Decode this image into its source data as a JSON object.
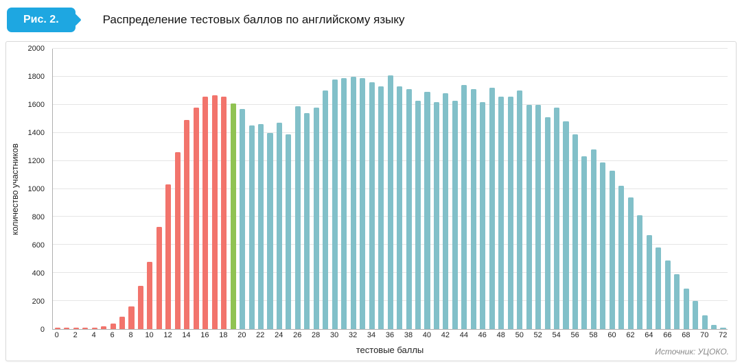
{
  "header": {
    "badge_label": "Рис. 2.",
    "title": "Распределение тестовых баллов по английскому языку"
  },
  "footer": {
    "source": "Источник: УЦОКО."
  },
  "colors": {
    "badge": "#1ea7e1",
    "red_bars": "#f2746c",
    "green_bar": "#90c352",
    "teal_bars": "#82c0c9"
  },
  "chart_data": {
    "type": "bar",
    "title": "Распределение тестовых баллов по английскому языку",
    "xlabel": "тестовые баллы",
    "ylabel": "количество участников",
    "xlim": [
      0,
      72
    ],
    "ylim": [
      0,
      2000
    ],
    "y_tick_step": 200,
    "x_tick_step": 2,
    "grid": "horizontal",
    "legend": "none",
    "x": [
      0,
      1,
      2,
      3,
      4,
      5,
      6,
      7,
      8,
      9,
      10,
      11,
      12,
      13,
      14,
      15,
      16,
      17,
      18,
      19,
      20,
      21,
      22,
      23,
      24,
      25,
      26,
      27,
      28,
      29,
      30,
      31,
      32,
      33,
      34,
      35,
      36,
      37,
      38,
      39,
      40,
      41,
      42,
      43,
      44,
      45,
      46,
      47,
      48,
      49,
      50,
      51,
      52,
      53,
      54,
      55,
      56,
      57,
      58,
      59,
      60,
      61,
      62,
      63,
      64,
      65,
      66,
      67,
      68,
      69,
      70,
      71,
      72
    ],
    "values": [
      10,
      10,
      10,
      10,
      10,
      20,
      40,
      90,
      160,
      310,
      480,
      730,
      1030,
      1260,
      1490,
      1580,
      1660,
      1670,
      1660,
      1610,
      1570,
      1450,
      1460,
      1400,
      1470,
      1390,
      1590,
      1540,
      1580,
      1700,
      1780,
      1790,
      1800,
      1790,
      1760,
      1730,
      1810,
      1730,
      1710,
      1630,
      1690,
      1620,
      1680,
      1630,
      1740,
      1710,
      1620,
      1720,
      1660,
      1660,
      1700,
      1600,
      1600,
      1510,
      1580,
      1480,
      1390,
      1230,
      1280,
      1190,
      1130,
      1020,
      940,
      810,
      670,
      580,
      490,
      390,
      290,
      200,
      100,
      30,
      10
    ],
    "x_tick_labels": [
      "0",
      "2",
      "4",
      "6",
      "8",
      "10",
      "12",
      "14",
      "16",
      "18",
      "20",
      "22",
      "24",
      "26",
      "28",
      "30",
      "32",
      "34",
      "36",
      "38",
      "40",
      "42",
      "44",
      "46",
      "48",
      "50",
      "52",
      "54",
      "56",
      "58",
      "60",
      "62",
      "64",
      "66",
      "68",
      "70",
      "72"
    ],
    "y_tick_labels": [
      "0",
      "200",
      "400",
      "600",
      "800",
      "1000",
      "1200",
      "1400",
      "1600",
      "1800",
      "2000"
    ],
    "color_segments": [
      {
        "from": 0,
        "to": 18,
        "color": "#f2746c"
      },
      {
        "from": 19,
        "to": 19,
        "color": "#90c352"
      },
      {
        "from": 20,
        "to": 72,
        "color": "#82c0c9"
      }
    ]
  }
}
